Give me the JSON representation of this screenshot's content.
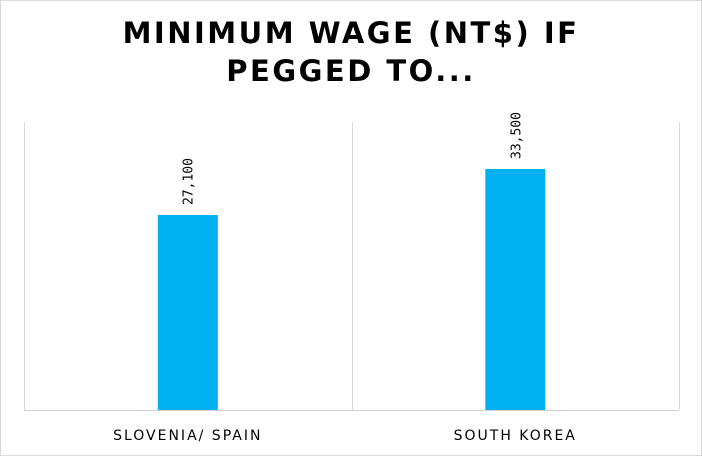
{
  "chart_data": {
    "type": "bar",
    "title_lines": [
      "MINIMUM WAGE (NT$) IF",
      "PEGGED TO..."
    ],
    "categories": [
      "SLOVENIA/ SPAIN",
      "SOUTH KOREA"
    ],
    "values": [
      27100,
      33500
    ],
    "data_labels": [
      "27,100",
      "33,500"
    ],
    "xlabel": "",
    "ylabel": "",
    "ylim": [
      0,
      40000
    ],
    "grid": "vertical separators between categories",
    "legend": "none",
    "bar_color": "#00B0F0"
  }
}
